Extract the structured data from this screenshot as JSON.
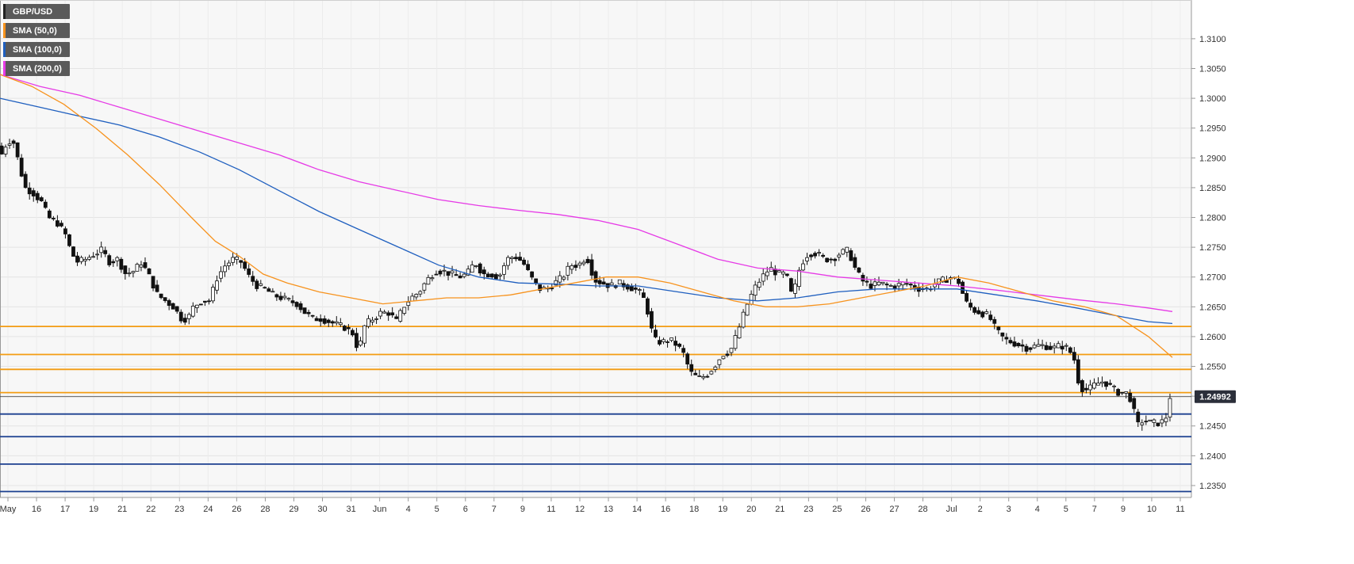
{
  "chart_data": {
    "type": "candlestick",
    "symbol": "GBP/USD",
    "ylim": [
      1.233,
      1.3165
    ],
    "y_ticks": [
      "1.3100",
      "1.3050",
      "1.3000",
      "1.2950",
      "1.2900",
      "1.2850",
      "1.2800",
      "1.2750",
      "1.2700",
      "1.2650",
      "1.2600",
      "1.2550",
      "1.2500",
      "1.2450",
      "1.2400",
      "1.2350"
    ],
    "x_ticks": [
      "May",
      "16",
      "17",
      "19",
      "21",
      "22",
      "23",
      "24",
      "26",
      "28",
      "29",
      "30",
      "31",
      "Jun",
      "4",
      "5",
      "6",
      "7",
      "9",
      "11",
      "12",
      "13",
      "14",
      "16",
      "18",
      "19",
      "20",
      "21",
      "23",
      "25",
      "26",
      "27",
      "28",
      "Jul",
      "2",
      "3",
      "4",
      "5",
      "7",
      "9",
      "10",
      "11"
    ],
    "last_price": "1.24992",
    "legend": [
      {
        "name": "GBP/USD",
        "color": "#222222"
      },
      {
        "name": "SMA (50,0)",
        "color": "#f7931e"
      },
      {
        "name": "SMA (100,0)",
        "color": "#1f5fbf"
      },
      {
        "name": "SMA (200,0)",
        "color": "#e63ae6"
      }
    ],
    "resistance_levels": [
      1.2617,
      1.257,
      1.2545,
      1.2506
    ],
    "support_levels": [
      1.247,
      1.2432,
      1.2386,
      1.234
    ],
    "price_path": [
      [
        0,
        1.292
      ],
      [
        5,
        1.2905
      ],
      [
        12,
        1.293
      ],
      [
        20,
        1.2925
      ],
      [
        28,
        1.288
      ],
      [
        34,
        1.285
      ],
      [
        45,
        1.284
      ],
      [
        55,
        1.2825
      ],
      [
        63,
        1.28
      ],
      [
        75,
        1.279
      ],
      [
        85,
        1.277
      ],
      [
        92,
        1.274
      ],
      [
        100,
        1.2725
      ],
      [
        110,
        1.273
      ],
      [
        120,
        1.2738
      ],
      [
        130,
        1.2745
      ],
      [
        140,
        1.2725
      ],
      [
        150,
        1.273
      ],
      [
        160,
        1.2705
      ],
      [
        170,
        1.271
      ],
      [
        180,
        1.2725
      ],
      [
        190,
        1.27
      ],
      [
        200,
        1.267
      ],
      [
        210,
        1.266
      ],
      [
        220,
        1.265
      ],
      [
        230,
        1.263
      ],
      [
        238,
        1.263
      ],
      [
        245,
        1.265
      ],
      [
        255,
        1.266
      ],
      [
        265,
        1.266
      ],
      [
        275,
        1.27
      ],
      [
        285,
        1.272
      ],
      [
        295,
        1.273
      ],
      [
        305,
        1.2725
      ],
      [
        315,
        1.27
      ],
      [
        325,
        1.2685
      ],
      [
        335,
        1.268
      ],
      [
        345,
        1.267
      ],
      [
        355,
        1.2665
      ],
      [
        365,
        1.266
      ],
      [
        375,
        1.2655
      ],
      [
        385,
        1.264
      ],
      [
        395,
        1.263
      ],
      [
        405,
        1.263
      ],
      [
        415,
        1.2625
      ],
      [
        425,
        1.262
      ],
      [
        435,
        1.2615
      ],
      [
        445,
        1.2605
      ],
      [
        452,
        1.2575
      ],
      [
        460,
        1.262
      ],
      [
        470,
        1.263
      ],
      [
        480,
        1.264
      ],
      [
        490,
        1.264
      ],
      [
        500,
        1.2625
      ],
      [
        508,
        1.265
      ],
      [
        518,
        1.2665
      ],
      [
        528,
        1.2675
      ],
      [
        538,
        1.2695
      ],
      [
        548,
        1.271
      ],
      [
        558,
        1.271
      ],
      [
        568,
        1.2705
      ],
      [
        578,
        1.27
      ],
      [
        588,
        1.2705
      ],
      [
        598,
        1.2725
      ],
      [
        608,
        1.2705
      ],
      [
        618,
        1.2705
      ],
      [
        628,
        1.27
      ],
      [
        638,
        1.273
      ],
      [
        648,
        1.2735
      ],
      [
        658,
        1.2725
      ],
      [
        668,
        1.27
      ],
      [
        678,
        1.268
      ],
      [
        688,
        1.268
      ],
      [
        698,
        1.269
      ],
      [
        708,
        1.27
      ],
      [
        718,
        1.272
      ],
      [
        728,
        1.272
      ],
      [
        738,
        1.2735
      ],
      [
        748,
        1.2695
      ],
      [
        758,
        1.269
      ],
      [
        768,
        1.2685
      ],
      [
        778,
        1.269
      ],
      [
        788,
        1.2685
      ],
      [
        798,
        1.268
      ],
      [
        808,
        1.267
      ],
      [
        815,
        1.264
      ],
      [
        822,
        1.2595
      ],
      [
        832,
        1.259
      ],
      [
        842,
        1.2595
      ],
      [
        852,
        1.2585
      ],
      [
        860,
        1.257
      ],
      [
        868,
        1.254
      ],
      [
        878,
        1.253
      ],
      [
        888,
        1.2535
      ],
      [
        898,
        1.255
      ],
      [
        908,
        1.257
      ],
      [
        918,
        1.2575
      ],
      [
        928,
        1.261
      ],
      [
        938,
        1.265
      ],
      [
        948,
        1.268
      ],
      [
        958,
        1.27
      ],
      [
        968,
        1.2715
      ],
      [
        978,
        1.2705
      ],
      [
        988,
        1.2705
      ],
      [
        996,
        1.2665
      ],
      [
        1006,
        1.272
      ],
      [
        1016,
        1.274
      ],
      [
        1026,
        1.274
      ],
      [
        1036,
        1.273
      ],
      [
        1046,
        1.273
      ],
      [
        1056,
        1.274
      ],
      [
        1066,
        1.2745
      ],
      [
        1076,
        1.271
      ],
      [
        1086,
        1.269
      ],
      [
        1096,
        1.2685
      ],
      [
        1106,
        1.269
      ],
      [
        1116,
        1.2685
      ],
      [
        1126,
        1.2685
      ],
      [
        1136,
        1.269
      ],
      [
        1146,
        1.2685
      ],
      [
        1156,
        1.268
      ],
      [
        1166,
        1.268
      ],
      [
        1176,
        1.269
      ],
      [
        1186,
        1.2695
      ],
      [
        1196,
        1.27
      ],
      [
        1206,
        1.269
      ],
      [
        1212,
        1.266
      ],
      [
        1222,
        1.2645
      ],
      [
        1232,
        1.264
      ],
      [
        1242,
        1.2635
      ],
      [
        1252,
        1.261
      ],
      [
        1262,
        1.2595
      ],
      [
        1272,
        1.259
      ],
      [
        1282,
        1.2585
      ],
      [
        1292,
        1.258
      ],
      [
        1302,
        1.2585
      ],
      [
        1312,
        1.2585
      ],
      [
        1322,
        1.258
      ],
      [
        1332,
        1.2585
      ],
      [
        1342,
        1.258
      ],
      [
        1350,
        1.256
      ],
      [
        1356,
        1.2515
      ],
      [
        1366,
        1.251
      ],
      [
        1376,
        1.252
      ],
      [
        1386,
        1.2525
      ],
      [
        1396,
        1.2515
      ],
      [
        1406,
        1.2505
      ],
      [
        1416,
        1.2505
      ],
      [
        1422,
        1.249
      ],
      [
        1428,
        1.245
      ],
      [
        1436,
        1.246
      ],
      [
        1446,
        1.2455
      ],
      [
        1456,
        1.2455
      ],
      [
        1464,
        1.246
      ],
      [
        1468,
        1.2499
      ]
    ],
    "sma50": [
      [
        0,
        1.304
      ],
      [
        40,
        1.302
      ],
      [
        80,
        1.299
      ],
      [
        120,
        1.295
      ],
      [
        160,
        1.2905
      ],
      [
        200,
        1.2855
      ],
      [
        240,
        1.28
      ],
      [
        270,
        1.276
      ],
      [
        300,
        1.2735
      ],
      [
        330,
        1.2705
      ],
      [
        360,
        1.269
      ],
      [
        400,
        1.2675
      ],
      [
        440,
        1.2665
      ],
      [
        480,
        1.2655
      ],
      [
        520,
        1.266
      ],
      [
        560,
        1.2665
      ],
      [
        600,
        1.2665
      ],
      [
        640,
        1.267
      ],
      [
        680,
        1.268
      ],
      [
        720,
        1.269
      ],
      [
        760,
        1.27
      ],
      [
        800,
        1.27
      ],
      [
        840,
        1.269
      ],
      [
        880,
        1.2675
      ],
      [
        920,
        1.266
      ],
      [
        960,
        1.265
      ],
      [
        1000,
        1.265
      ],
      [
        1040,
        1.2655
      ],
      [
        1080,
        1.2665
      ],
      [
        1120,
        1.2675
      ],
      [
        1160,
        1.2685
      ],
      [
        1200,
        1.27
      ],
      [
        1240,
        1.269
      ],
      [
        1280,
        1.2675
      ],
      [
        1320,
        1.266
      ],
      [
        1360,
        1.265
      ],
      [
        1400,
        1.2635
      ],
      [
        1440,
        1.26
      ],
      [
        1470,
        1.2565
      ]
    ],
    "sma100": [
      [
        0,
        1.3
      ],
      [
        50,
        1.2985
      ],
      [
        100,
        1.297
      ],
      [
        150,
        1.2955
      ],
      [
        200,
        1.2935
      ],
      [
        250,
        1.291
      ],
      [
        300,
        1.288
      ],
      [
        350,
        1.2845
      ],
      [
        400,
        1.281
      ],
      [
        450,
        1.278
      ],
      [
        500,
        1.275
      ],
      [
        550,
        1.272
      ],
      [
        600,
        1.27
      ],
      [
        650,
        1.269
      ],
      [
        700,
        1.2688
      ],
      [
        750,
        1.2685
      ],
      [
        800,
        1.2685
      ],
      [
        850,
        1.2675
      ],
      [
        900,
        1.2665
      ],
      [
        950,
        1.266
      ],
      [
        1000,
        1.2665
      ],
      [
        1050,
        1.2675
      ],
      [
        1100,
        1.268
      ],
      [
        1150,
        1.268
      ],
      [
        1200,
        1.268
      ],
      [
        1250,
        1.267
      ],
      [
        1300,
        1.266
      ],
      [
        1350,
        1.2648
      ],
      [
        1400,
        1.2635
      ],
      [
        1440,
        1.2625
      ],
      [
        1470,
        1.2622
      ]
    ],
    "sma200": [
      [
        0,
        1.304
      ],
      [
        50,
        1.302
      ],
      [
        100,
        1.3005
      ],
      [
        150,
        1.2985
      ],
      [
        200,
        1.2965
      ],
      [
        250,
        1.2945
      ],
      [
        300,
        1.2925
      ],
      [
        350,
        1.2905
      ],
      [
        400,
        1.288
      ],
      [
        450,
        1.286
      ],
      [
        500,
        1.2845
      ],
      [
        550,
        1.283
      ],
      [
        600,
        1.282
      ],
      [
        650,
        1.2812
      ],
      [
        700,
        1.2805
      ],
      [
        750,
        1.2795
      ],
      [
        800,
        1.278
      ],
      [
        850,
        1.2755
      ],
      [
        900,
        1.273
      ],
      [
        950,
        1.2715
      ],
      [
        1000,
        1.271
      ],
      [
        1050,
        1.27
      ],
      [
        1100,
        1.2695
      ],
      [
        1150,
        1.269
      ],
      [
        1200,
        1.2685
      ],
      [
        1250,
        1.2678
      ],
      [
        1300,
        1.267
      ],
      [
        1350,
        1.2662
      ],
      [
        1400,
        1.2655
      ],
      [
        1440,
        1.2648
      ],
      [
        1470,
        1.2642
      ]
    ]
  }
}
